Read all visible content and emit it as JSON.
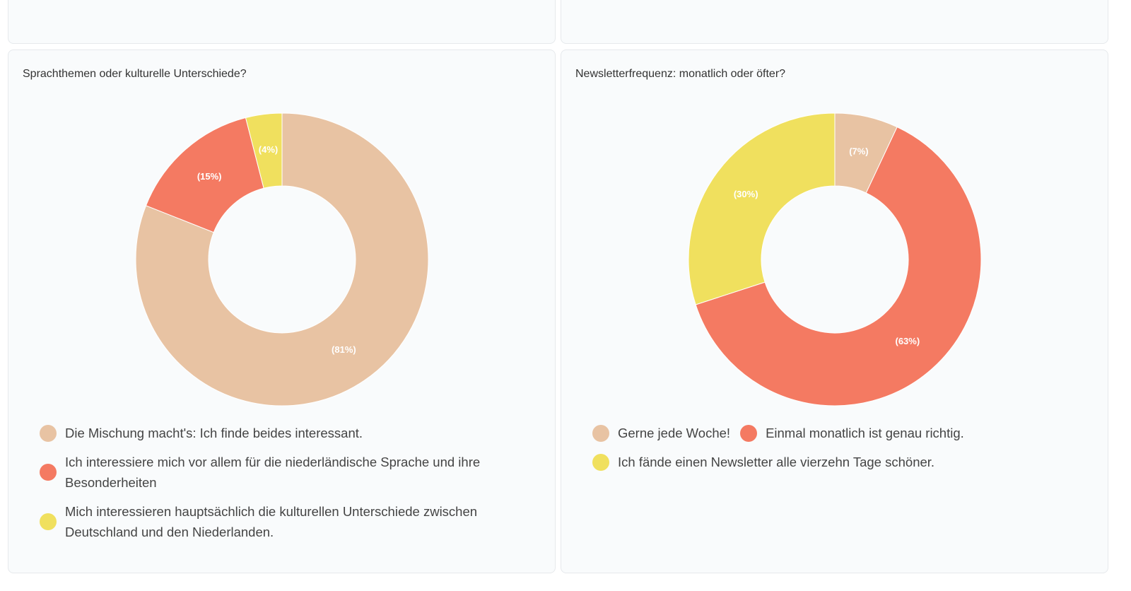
{
  "chart_data": [
    {
      "type": "donut",
      "title": "Sprachthemen oder kulturelle Unterschiede?",
      "categories": [
        "Die Mischung macht's: Ich finde beides interessant.",
        "Ich interessiere mich vor allem für die niederländische Sprache und ihre Besonderheiten",
        "Mich interessieren hauptsächlich die kulturellen Unterschiede zwischen Deutschland und den Niederlanden."
      ],
      "values": [
        81,
        15,
        4
      ],
      "value_labels": [
        "(81%)",
        "(15%)",
        "(4%)"
      ],
      "colors": [
        "#e8c3a3",
        "#f47a62",
        "#f0e05e"
      ]
    },
    {
      "type": "donut",
      "title": "Newsletterfrequenz: monatlich oder öfter?",
      "categories": [
        "Gerne jede Woche!",
        "Einmal monatlich ist genau richtig.",
        "Ich fände einen Newsletter alle vierzehn Tage schöner."
      ],
      "values": [
        7,
        63,
        30
      ],
      "value_labels": [
        "(7%)",
        "(63%)",
        "(30%)"
      ],
      "colors": [
        "#e8c3a3",
        "#f47a62",
        "#f0e05e"
      ]
    }
  ]
}
